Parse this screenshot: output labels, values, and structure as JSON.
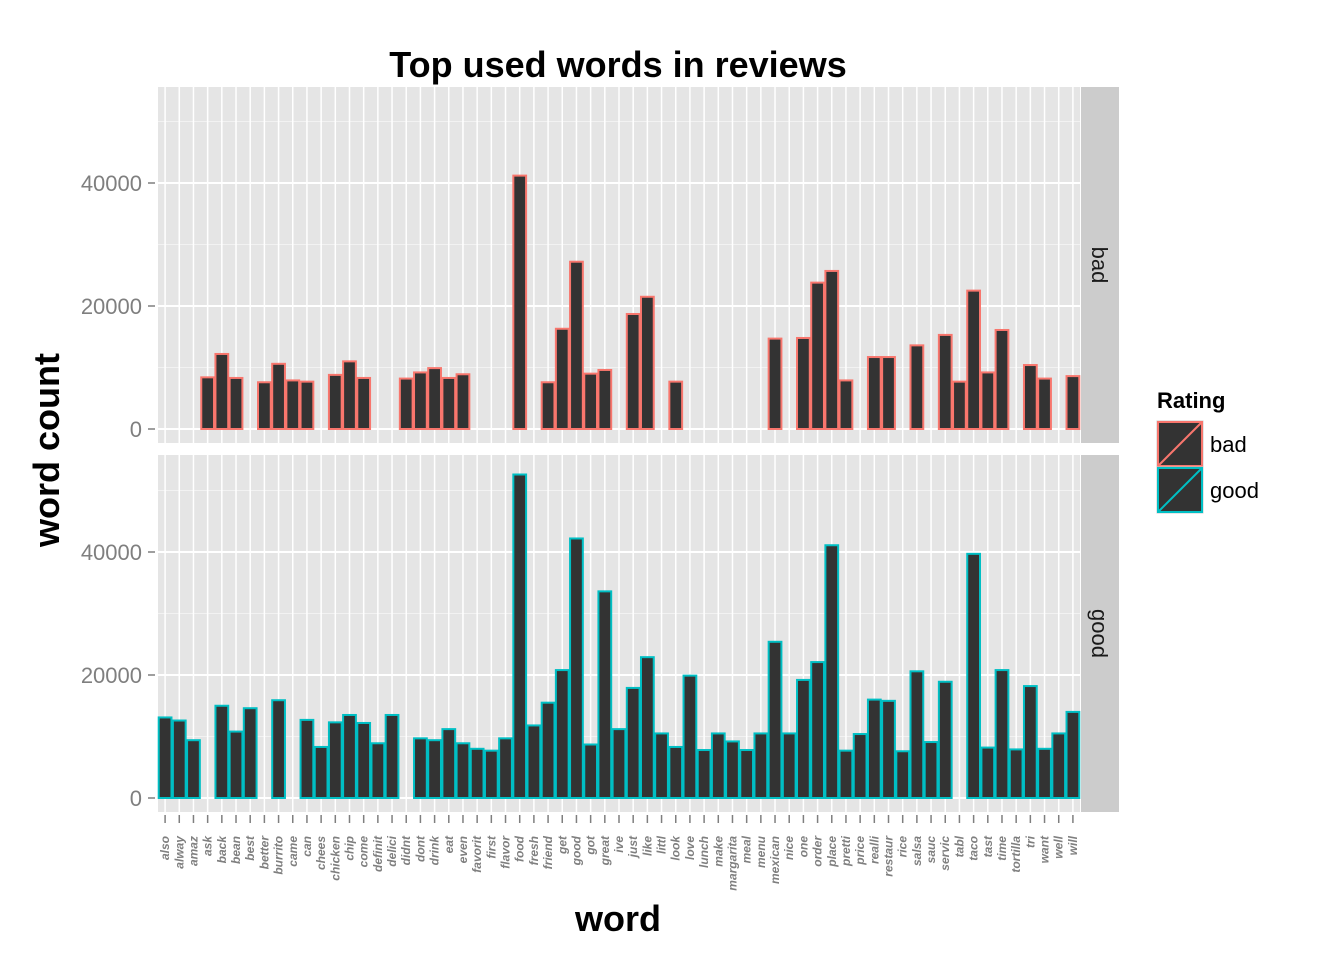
{
  "chart_data": {
    "type": "bar",
    "title": "Top used words in reviews",
    "xlabel": "word",
    "ylabel": "word count",
    "ylim": [
      0,
      55000
    ],
    "yticks": [
      0,
      20000,
      40000
    ],
    "ytick_labels": [
      "0",
      "20000",
      "40000"
    ],
    "facets": [
      "bad",
      "good"
    ],
    "legend": {
      "title": "Rating",
      "position": "right",
      "entries": [
        {
          "label": "bad",
          "color": "#F8766D"
        },
        {
          "label": "good",
          "color": "#00BFC4"
        }
      ]
    },
    "bar_fill": "#333333",
    "categories": [
      "also",
      "alway",
      "amaz",
      "ask",
      "back",
      "bean",
      "best",
      "better",
      "burrito",
      "came",
      "can",
      "chees",
      "chicken",
      "chip",
      "come",
      "definit",
      "delici",
      "didnt",
      "dont",
      "drink",
      "eat",
      "even",
      "favorit",
      "first",
      "flavor",
      "food",
      "fresh",
      "friend",
      "get",
      "good",
      "got",
      "great",
      "ive",
      "just",
      "like",
      "littl",
      "look",
      "love",
      "lunch",
      "make",
      "margarita",
      "meal",
      "menu",
      "mexican",
      "nice",
      "one",
      "order",
      "place",
      "pretti",
      "price",
      "realli",
      "restaur",
      "rice",
      "salsa",
      "sauc",
      "servic",
      "tabl",
      "taco",
      "tast",
      "time",
      "tortilla",
      "tri",
      "want",
      "well",
      "will"
    ],
    "series": [
      {
        "name": "bad",
        "color": "#F8766D",
        "values": [
          null,
          null,
          null,
          8400,
          12200,
          8300,
          null,
          7600,
          10600,
          7900,
          7700,
          null,
          8800,
          11000,
          8300,
          null,
          null,
          8200,
          9200,
          9900,
          8300,
          8900,
          null,
          null,
          null,
          41200,
          null,
          7600,
          16300,
          27200,
          9000,
          9600,
          null,
          18700,
          21500,
          null,
          7700,
          null,
          null,
          null,
          null,
          null,
          null,
          14700,
          null,
          14800,
          23800,
          25700,
          7900,
          null,
          11700,
          11700,
          null,
          13600,
          null,
          15300,
          7700,
          22500,
          9200,
          16100,
          null,
          10400,
          8200,
          null,
          8600
        ]
      },
      {
        "name": "good",
        "color": "#00BFC4",
        "values": [
          13100,
          12600,
          9400,
          null,
          15000,
          10800,
          14600,
          null,
          15900,
          null,
          12700,
          8300,
          12300,
          13500,
          12200,
          8900,
          13500,
          null,
          9700,
          9400,
          11200,
          8900,
          8000,
          7700,
          9700,
          52600,
          11800,
          15500,
          20800,
          42200,
          8700,
          33600,
          11200,
          17900,
          22900,
          10500,
          8300,
          19900,
          7800,
          10500,
          9200,
          7800,
          10500,
          25400,
          10500,
          19200,
          22100,
          41100,
          7700,
          10400,
          16000,
          15800,
          7600,
          20600,
          9100,
          18900,
          null,
          39700,
          8200,
          20800,
          7900,
          18200,
          8000,
          10500,
          14000
        ]
      }
    ]
  }
}
